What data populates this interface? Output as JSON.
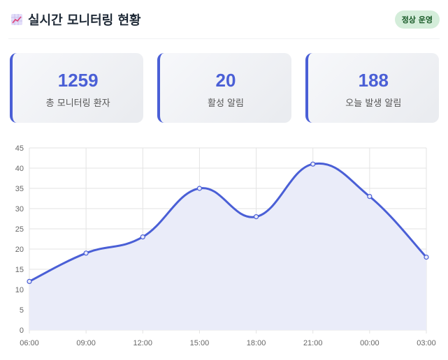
{
  "header": {
    "title": "실시간 모니터링 현황",
    "status_badge": "정상 운영",
    "icon": "chart-increasing-icon"
  },
  "cards": [
    {
      "value": "1259",
      "label": "총 모니터링 환자"
    },
    {
      "value": "20",
      "label": "활성 알림"
    },
    {
      "value": "188",
      "label": "오늘 발생 알림"
    }
  ],
  "chart_data": {
    "type": "line",
    "categories": [
      "06:00",
      "09:00",
      "12:00",
      "15:00",
      "18:00",
      "21:00",
      "00:00",
      "03:00"
    ],
    "values": [
      12,
      19,
      23,
      35,
      28,
      41,
      33,
      18
    ],
    "ylim": [
      0,
      45
    ],
    "yticks": [
      "0",
      "5",
      "10",
      "15",
      "20",
      "25",
      "30",
      "35",
      "40",
      "45"
    ],
    "grid": true,
    "line_color": "#4a5fd6",
    "fill_color": "#eaecf9"
  }
}
